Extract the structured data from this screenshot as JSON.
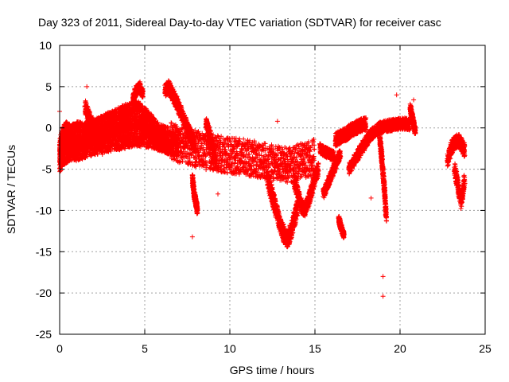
{
  "chart_data": {
    "type": "scatter",
    "title": "Day 323 of 2011, Sidereal Day-to-day VTEC variation (SDTVAR) for receiver casc",
    "xlabel": "GPS time / hours",
    "ylabel": "SDTVAR / TECUs",
    "xlim": [
      0,
      25
    ],
    "ylim": [
      -25,
      10
    ],
    "xticks": [
      0,
      5,
      10,
      15,
      20,
      25
    ],
    "yticks": [
      10,
      5,
      0,
      -5,
      -10,
      -15,
      -20,
      -25
    ],
    "grid": true,
    "marker": "+",
    "color": "#ff0000",
    "series": [
      {
        "name": "SDTVAR",
        "segments": [
          {
            "x": [
              0.0,
              0.1,
              0.2,
              0.3,
              0.4,
              0.5,
              0.6,
              0.8,
              1.0,
              1.2,
              1.4,
              1.6,
              1.8,
              2.0,
              2.2,
              2.4,
              2.6,
              2.8,
              3.0,
              3.2,
              3.4,
              3.6,
              3.8,
              4.0,
              4.2,
              4.4,
              4.6,
              4.8,
              5.0,
              5.2,
              5.4,
              5.6,
              5.8,
              6.0,
              6.2,
              6.4
            ],
            "y": [
              -3.0,
              -2.0,
              -1.5,
              -1.0,
              -0.8,
              -1.0,
              -1.2,
              -1.0,
              -0.8,
              -0.9,
              -1.0,
              -0.8,
              -0.6,
              -0.5,
              -0.4,
              -0.2,
              0.0,
              0.2,
              0.4,
              0.6,
              0.8,
              1.0,
              1.2,
              1.4,
              1.5,
              1.7,
              1.6,
              1.3,
              0.9,
              0.5,
              0.0,
              -0.5,
              -1.0,
              -1.2,
              -1.4,
              -1.5
            ],
            "spread": 1.6
          },
          {
            "x": [
              0.0,
              0.15,
              0.3,
              0.45,
              0.6,
              0.8,
              1.0,
              1.3,
              1.6,
              1.9,
              2.2,
              2.5,
              2.8,
              3.1,
              3.4,
              3.7,
              4.0,
              4.3,
              4.6,
              4.9,
              5.2,
              5.5,
              5.8,
              6.1,
              6.4,
              6.7,
              7.0
            ],
            "y": [
              -4.0,
              -3.5,
              -3.0,
              -2.8,
              -2.6,
              -2.5,
              -2.6,
              -2.4,
              -2.2,
              -2.0,
              -1.8,
              -1.6,
              -1.5,
              -1.4,
              -1.3,
              -1.2,
              -1.0,
              -0.9,
              -0.8,
              -0.9,
              -1.0,
              -1.1,
              -1.3,
              -1.6,
              -1.8,
              -2.0,
              -2.2
            ],
            "spread": 1.4
          },
          {
            "x": [
              1.5,
              1.7,
              1.9,
              2.1,
              2.3,
              2.5
            ],
            "y": [
              2.5,
              1.5,
              0.5,
              -0.5,
              -1.5,
              -2.5
            ],
            "spread": 0.8
          },
          {
            "x": [
              4.3,
              4.5,
              4.7,
              4.9
            ],
            "y": [
              3.5,
              4.5,
              5.0,
              4.0
            ],
            "spread": 0.6
          },
          {
            "x": [
              6.2,
              6.4,
              6.6,
              6.8,
              7.0,
              7.2,
              7.4,
              7.6,
              7.8,
              8.0
            ],
            "y": [
              4.5,
              5.0,
              4.2,
              3.4,
              2.5,
              1.5,
              0.5,
              -0.5,
              -1.5,
              -2.5
            ],
            "spread": 0.8
          },
          {
            "x": [
              6.5,
              7.0,
              7.5,
              8.0,
              8.5,
              9.0,
              9.5,
              10.0,
              10.5,
              11.0,
              11.5,
              12.0,
              12.5,
              13.0,
              13.5,
              14.0,
              14.5,
              15.0
            ],
            "y": [
              -1.5,
              -2.0,
              -2.2,
              -2.5,
              -2.8,
              -3.0,
              -3.2,
              -3.3,
              -3.5,
              -3.6,
              -3.8,
              -4.0,
              -4.2,
              -4.4,
              -4.6,
              -4.2,
              -3.8,
              -3.5
            ],
            "spread": 2.2
          },
          {
            "x": [
              7.8,
              7.9,
              8.0,
              8.1
            ],
            "y": [
              -6.0,
              -8.0,
              -9.0,
              -10.0
            ],
            "spread": 0.5
          },
          {
            "x": [
              8.6,
              8.8,
              9.0,
              9.2
            ],
            "y": [
              0.6,
              -0.5,
              -2.5,
              -4.5
            ],
            "spread": 0.6
          },
          {
            "x": [
              12.2,
              12.4,
              12.6,
              12.8,
              13.0,
              13.2,
              13.4,
              13.6,
              13.8,
              14.0
            ],
            "y": [
              -6.0,
              -7.5,
              -9.0,
              -10.5,
              -12.0,
              -13.0,
              -13.5,
              -12.5,
              -11.0,
              -9.5
            ],
            "spread": 1.0
          },
          {
            "x": [
              13.8,
              14.0,
              14.2,
              14.4,
              14.6,
              14.8,
              15.0,
              15.2
            ],
            "y": [
              -6.5,
              -8.0,
              -9.5,
              -10.0,
              -9.0,
              -7.5,
              -6.0,
              -5.0
            ],
            "spread": 0.8
          },
          {
            "x": [
              15.3,
              15.5,
              15.7,
              15.9,
              16.1
            ],
            "y": [
              -2.5,
              -2.8,
              -3.0,
              -3.2,
              -3.4
            ],
            "spread": 0.6
          },
          {
            "x": [
              15.5,
              15.7,
              15.9,
              16.1,
              16.3,
              16.5
            ],
            "y": [
              -8.0,
              -7.0,
              -6.0,
              -5.0,
              -4.0,
              -3.0
            ],
            "spread": 0.6
          },
          {
            "x": [
              16.2,
              16.4,
              16.6,
              16.8,
              17.0,
              17.2,
              17.4,
              17.6,
              17.8,
              18.0
            ],
            "y": [
              -1.5,
              -1.2,
              -1.0,
              -0.8,
              -0.5,
              -0.2,
              0.0,
              0.2,
              0.4,
              0.5
            ],
            "spread": 0.8
          },
          {
            "x": [
              16.4,
              16.5,
              16.6,
              16.7
            ],
            "y": [
              -11.0,
              -11.8,
              -12.4,
              -13.0
            ],
            "spread": 0.4
          },
          {
            "x": [
              17.0,
              17.3,
              17.6,
              17.9,
              18.2,
              18.5,
              18.8,
              19.1,
              19.4,
              19.7,
              20.0,
              20.3,
              20.6
            ],
            "y": [
              -5.0,
              -4.0,
              -3.0,
              -2.0,
              -1.0,
              -0.5,
              0.0,
              0.2,
              0.3,
              0.4,
              0.5,
              0.5,
              0.4
            ],
            "spread": 0.7
          },
          {
            "x": [
              18.8,
              18.9,
              19.0,
              19.1,
              19.2
            ],
            "y": [
              -1.0,
              -3.0,
              -5.5,
              -8.0,
              -11.0
            ],
            "spread": 0.5
          },
          {
            "x": [
              20.6,
              20.7,
              20.8,
              20.9
            ],
            "y": [
              2.5,
              1.5,
              0.5,
              -0.5
            ],
            "spread": 0.5
          },
          {
            "x": [
              22.8,
              23.0,
              23.2,
              23.4,
              23.6,
              23.8
            ],
            "y": [
              -4.0,
              -2.5,
              -1.8,
              -1.5,
              -2.0,
              -2.8
            ],
            "spread": 0.8
          },
          {
            "x": [
              23.2,
              23.4,
              23.6,
              23.8
            ],
            "y": [
              -5.0,
              -7.0,
              -9.0,
              -6.0
            ],
            "spread": 0.8
          }
        ],
        "outliers": {
          "x": [
            1.6,
            0.0,
            7.8,
            9.3,
            19.0,
            19.0,
            19.8,
            12.8,
            18.3,
            20.8,
            16.7
          ],
          "y": [
            5.0,
            2.0,
            -13.2,
            -8.0,
            -18.0,
            -20.4,
            4.0,
            0.8,
            -8.5,
            3.4,
            -12.8
          ]
        }
      }
    ]
  }
}
